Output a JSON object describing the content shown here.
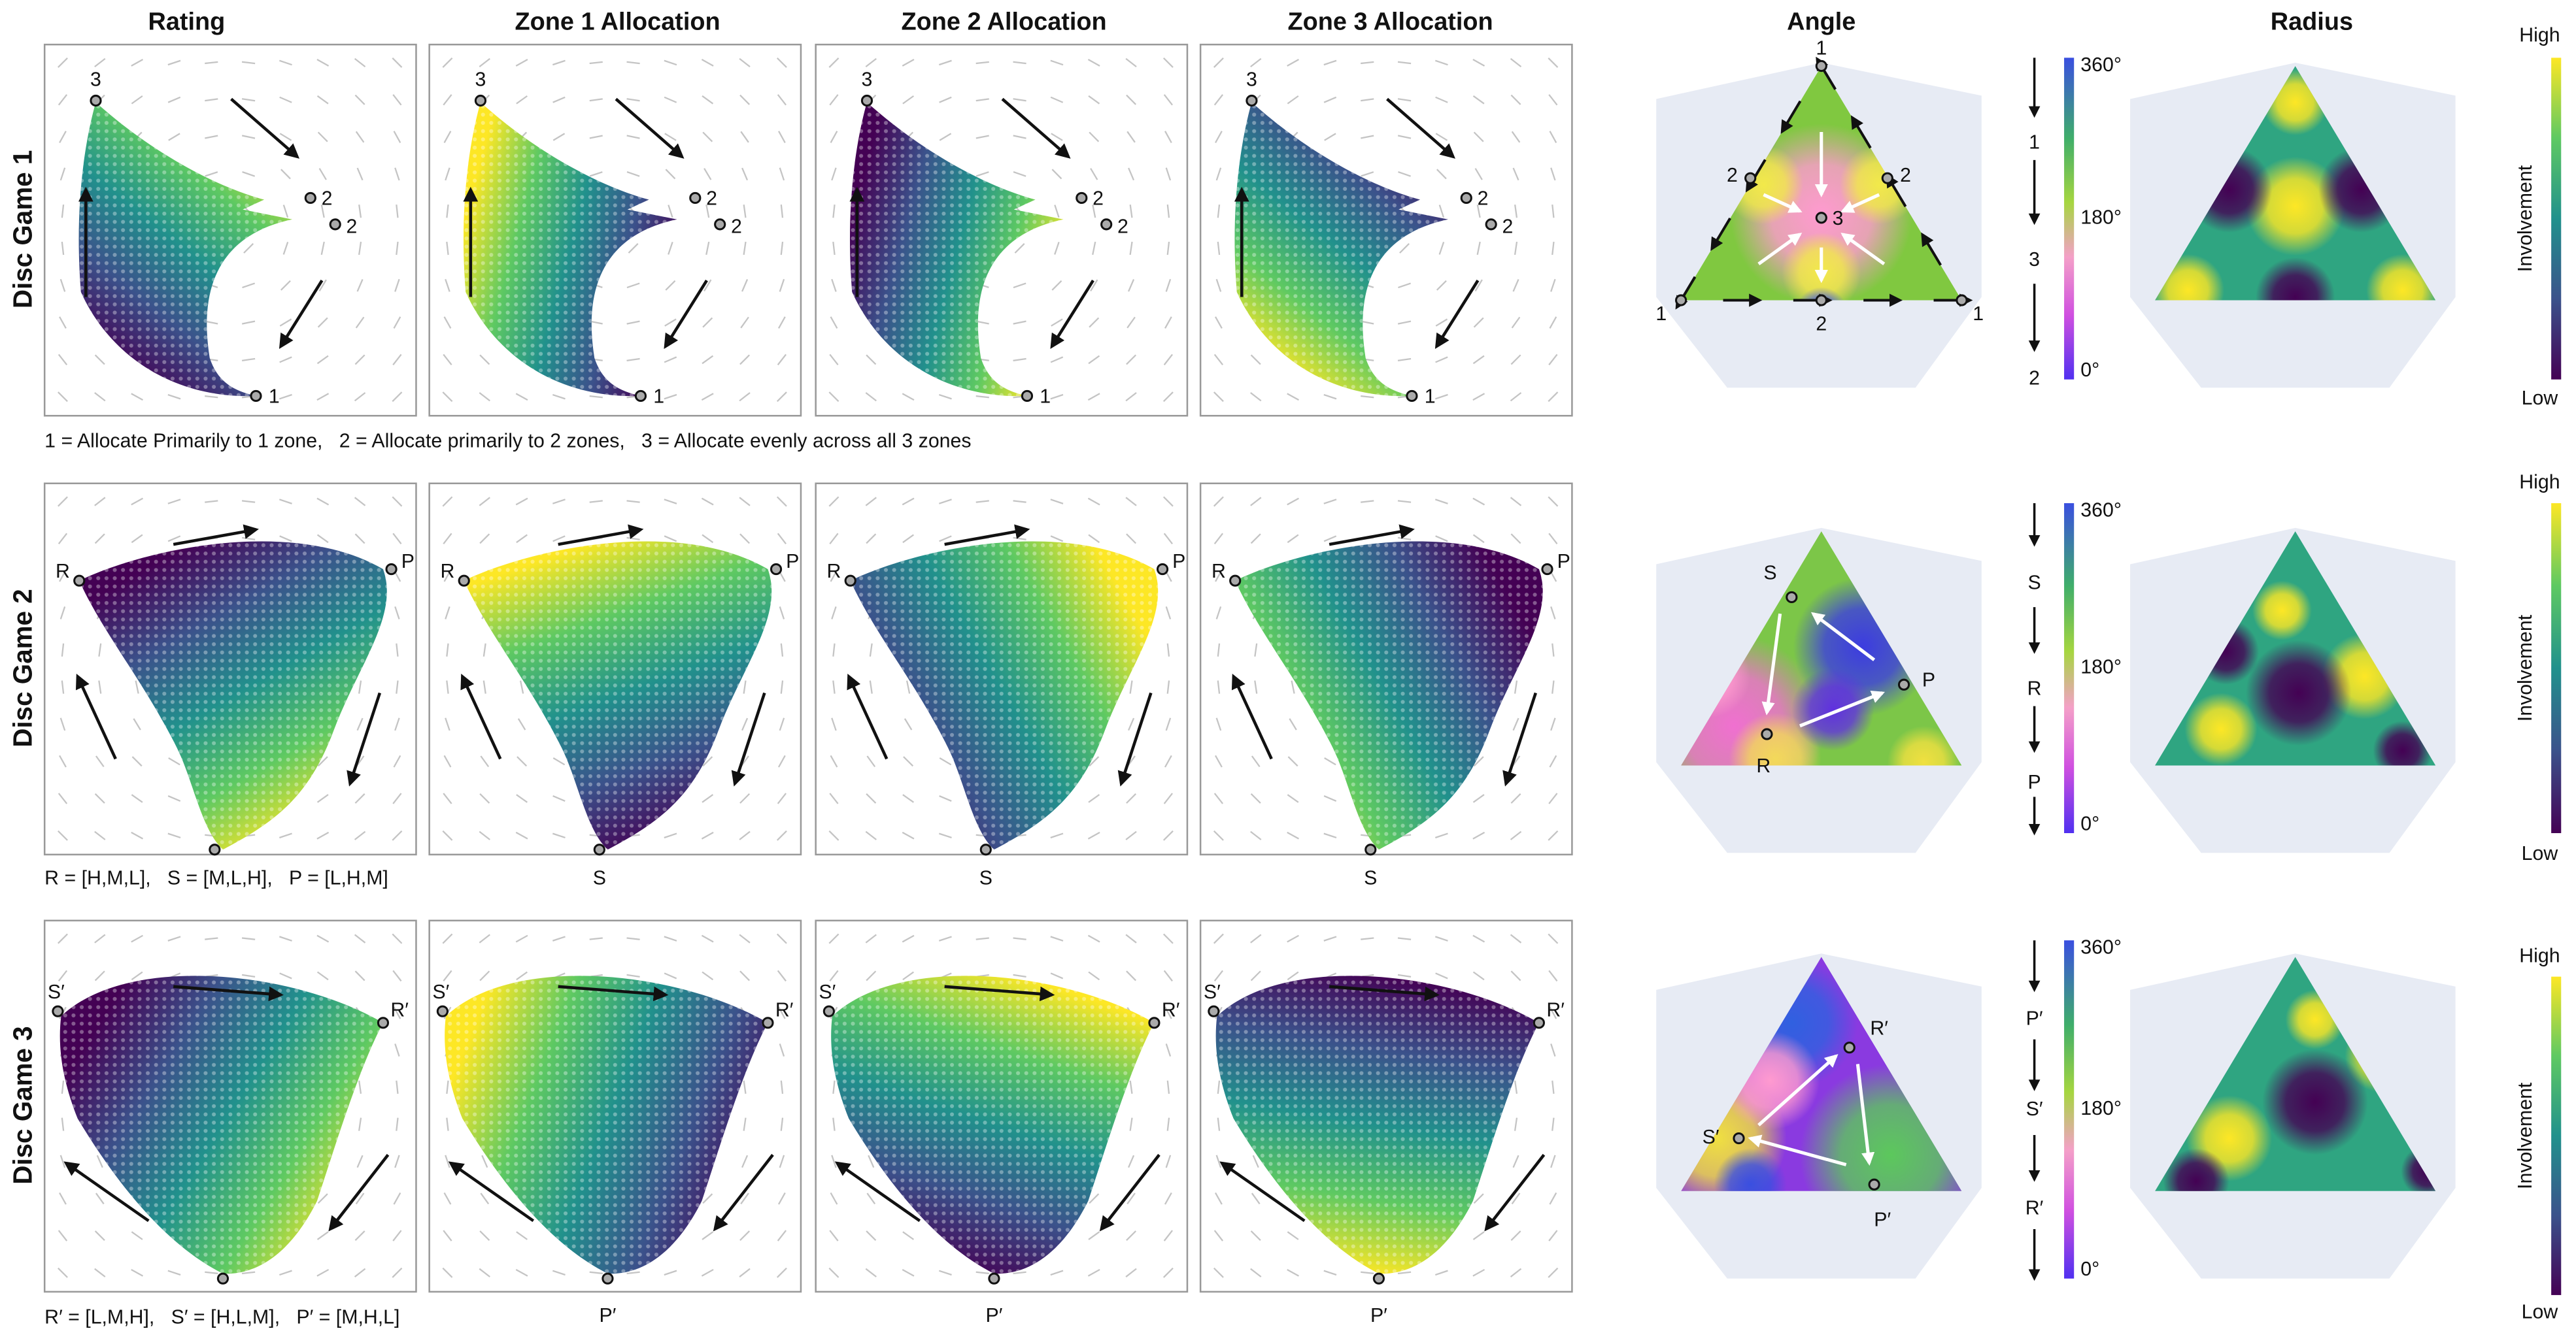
{
  "column_titles": [
    "Rating",
    "Zone 1 Allocation",
    "Zone 2 Allocation",
    "Zone 3 Allocation",
    "Angle",
    "Radius"
  ],
  "rows": [
    {
      "title": "Disc Game 1",
      "caption": "1 = Allocate Primarily to 1 zone,   2 = Allocate primarily to 2 zones,   3 = Allocate evenly across all 3 zones",
      "scatter_labels": [
        "3",
        "2",
        "2",
        "1"
      ],
      "angle_labels": [
        "1",
        "1",
        "1",
        "2",
        "2",
        "2",
        "3"
      ],
      "sequence": [
        "1",
        "3",
        "2"
      ]
    },
    {
      "title": "Disc Game 2",
      "caption": "R = [H,M,L],   S = [M,L,H],   P = [L,H,M]",
      "scatter_labels": [
        "R",
        "P",
        "S"
      ],
      "angle_labels": [
        "S",
        "P",
        "R"
      ],
      "sequence": [
        "S",
        "R",
        "P"
      ]
    },
    {
      "title": "Disc Game 3",
      "caption": "R′ = [L,M,H],   S′ = [H,L,M],   P′ = [M,H,L]",
      "scatter_labels": [
        "S′",
        "R′",
        "P′"
      ],
      "angle_labels": [
        "R′",
        "S′",
        "P′"
      ],
      "sequence": [
        "P′",
        "S′",
        "R′"
      ]
    }
  ],
  "angle_colorbar": {
    "ticks": [
      "360°",
      "180°",
      "0°"
    ]
  },
  "radius_colorbar": {
    "title": "Involvement",
    "high": "High",
    "low": "Low"
  }
}
